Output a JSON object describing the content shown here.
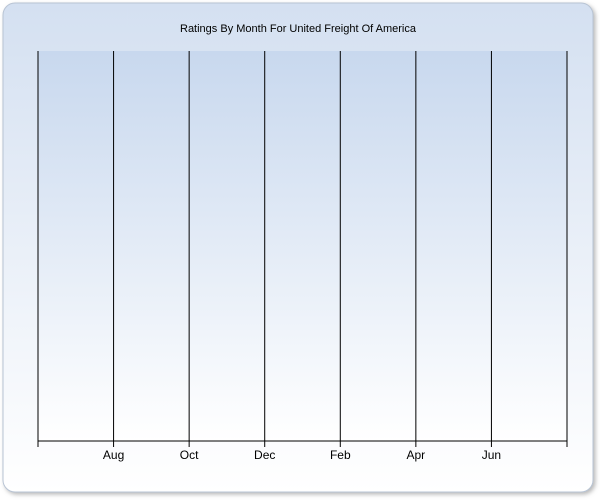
{
  "chart_data": {
    "type": "bar",
    "title": "Ratings By Month For United Freight Of America",
    "categories": [
      null,
      "Aug",
      "Oct",
      "Dec",
      "Feb",
      "Apr",
      "Jun",
      null
    ],
    "grid": true
  }
}
